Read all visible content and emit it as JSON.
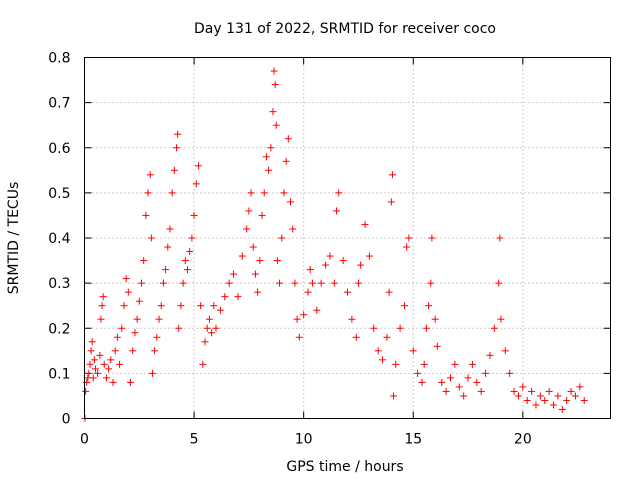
{
  "chart_data": {
    "type": "scatter",
    "title": "Day 131 of 2022, SRMTID for receiver coco",
    "xlabel": "GPS time / hours",
    "ylabel": "SRMTID / TECUs",
    "xlim": [
      0,
      24
    ],
    "ylim": [
      0,
      0.8
    ],
    "xticks": [
      0,
      5,
      10,
      15,
      20
    ],
    "xtick_labels": [
      "0",
      "5",
      "10",
      "15",
      "20"
    ],
    "yticks": [
      0,
      0.1,
      0.2,
      0.3,
      0.4,
      0.5,
      0.6,
      0.7,
      0.8
    ],
    "ytick_labels": [
      "0",
      "0.1",
      "0.2",
      "0.3",
      "0.4",
      "0.5",
      "0.6",
      "0.7",
      "0.8"
    ],
    "grid": true,
    "marker": "+",
    "series": [
      {
        "name": "SRMTID",
        "color": "#ff0000",
        "points": [
          [
            0.02,
            0.0
          ],
          [
            0.05,
            0.06
          ],
          [
            0.1,
            0.08
          ],
          [
            0.15,
            0.09
          ],
          [
            0.2,
            0.1
          ],
          [
            0.25,
            0.12
          ],
          [
            0.3,
            0.15
          ],
          [
            0.35,
            0.17
          ],
          [
            0.4,
            0.09
          ],
          [
            0.45,
            0.13
          ],
          [
            0.5,
            0.11
          ],
          [
            0.6,
            0.1
          ],
          [
            0.7,
            0.14
          ],
          [
            0.75,
            0.22
          ],
          [
            0.8,
            0.25
          ],
          [
            0.85,
            0.27
          ],
          [
            0.9,
            0.12
          ],
          [
            1.0,
            0.09
          ],
          [
            1.1,
            0.11
          ],
          [
            1.2,
            0.13
          ],
          [
            1.3,
            0.08
          ],
          [
            1.4,
            0.15
          ],
          [
            1.5,
            0.18
          ],
          [
            1.6,
            0.12
          ],
          [
            1.7,
            0.2
          ],
          [
            1.8,
            0.25
          ],
          [
            1.9,
            0.31
          ],
          [
            2.0,
            0.28
          ],
          [
            2.1,
            0.08
          ],
          [
            2.2,
            0.15
          ],
          [
            2.3,
            0.19
          ],
          [
            2.4,
            0.22
          ],
          [
            2.5,
            0.26
          ],
          [
            2.6,
            0.3
          ],
          [
            2.7,
            0.35
          ],
          [
            2.8,
            0.45
          ],
          [
            2.9,
            0.5
          ],
          [
            3.0,
            0.54
          ],
          [
            3.05,
            0.4
          ],
          [
            3.1,
            0.1
          ],
          [
            3.2,
            0.15
          ],
          [
            3.3,
            0.18
          ],
          [
            3.4,
            0.22
          ],
          [
            3.5,
            0.25
          ],
          [
            3.6,
            0.3
          ],
          [
            3.7,
            0.33
          ],
          [
            3.8,
            0.38
          ],
          [
            3.9,
            0.42
          ],
          [
            4.0,
            0.5
          ],
          [
            4.1,
            0.55
          ],
          [
            4.2,
            0.6
          ],
          [
            4.25,
            0.63
          ],
          [
            4.3,
            0.2
          ],
          [
            4.4,
            0.25
          ],
          [
            4.5,
            0.3
          ],
          [
            4.6,
            0.35
          ],
          [
            4.7,
            0.33
          ],
          [
            4.8,
            0.37
          ],
          [
            4.9,
            0.4
          ],
          [
            5.0,
            0.45
          ],
          [
            5.1,
            0.52
          ],
          [
            5.2,
            0.56
          ],
          [
            5.3,
            0.25
          ],
          [
            5.4,
            0.12
          ],
          [
            5.5,
            0.17
          ],
          [
            5.6,
            0.2
          ],
          [
            5.7,
            0.22
          ],
          [
            5.8,
            0.19
          ],
          [
            5.9,
            0.25
          ],
          [
            6.0,
            0.2
          ],
          [
            6.2,
            0.24
          ],
          [
            6.4,
            0.27
          ],
          [
            6.6,
            0.3
          ],
          [
            6.8,
            0.32
          ],
          [
            7.0,
            0.27
          ],
          [
            7.2,
            0.36
          ],
          [
            7.4,
            0.42
          ],
          [
            7.5,
            0.46
          ],
          [
            7.6,
            0.5
          ],
          [
            7.7,
            0.38
          ],
          [
            7.8,
            0.32
          ],
          [
            7.9,
            0.28
          ],
          [
            8.0,
            0.35
          ],
          [
            8.1,
            0.45
          ],
          [
            8.2,
            0.5
          ],
          [
            8.3,
            0.58
          ],
          [
            8.4,
            0.55
          ],
          [
            8.5,
            0.6
          ],
          [
            8.6,
            0.68
          ],
          [
            8.65,
            0.77
          ],
          [
            8.7,
            0.74
          ],
          [
            8.75,
            0.65
          ],
          [
            8.8,
            0.35
          ],
          [
            8.9,
            0.3
          ],
          [
            9.0,
            0.4
          ],
          [
            9.1,
            0.5
          ],
          [
            9.2,
            0.57
          ],
          [
            9.3,
            0.62
          ],
          [
            9.4,
            0.48
          ],
          [
            9.5,
            0.42
          ],
          [
            9.6,
            0.3
          ],
          [
            9.7,
            0.22
          ],
          [
            9.8,
            0.18
          ],
          [
            10.0,
            0.23
          ],
          [
            10.2,
            0.28
          ],
          [
            10.3,
            0.33
          ],
          [
            10.4,
            0.3
          ],
          [
            10.6,
            0.24
          ],
          [
            10.8,
            0.3
          ],
          [
            11.0,
            0.34
          ],
          [
            11.2,
            0.36
          ],
          [
            11.4,
            0.3
          ],
          [
            11.5,
            0.46
          ],
          [
            11.6,
            0.5
          ],
          [
            11.8,
            0.35
          ],
          [
            12.0,
            0.28
          ],
          [
            12.2,
            0.22
          ],
          [
            12.4,
            0.18
          ],
          [
            12.5,
            0.3
          ],
          [
            12.6,
            0.34
          ],
          [
            12.8,
            0.43
          ],
          [
            13.0,
            0.36
          ],
          [
            13.2,
            0.2
          ],
          [
            13.4,
            0.15
          ],
          [
            13.6,
            0.13
          ],
          [
            13.8,
            0.18
          ],
          [
            13.9,
            0.28
          ],
          [
            14.0,
            0.48
          ],
          [
            14.05,
            0.54
          ],
          [
            14.1,
            0.05
          ],
          [
            14.2,
            0.12
          ],
          [
            14.4,
            0.2
          ],
          [
            14.6,
            0.25
          ],
          [
            14.7,
            0.38
          ],
          [
            14.8,
            0.4
          ],
          [
            15.0,
            0.15
          ],
          [
            15.2,
            0.1
          ],
          [
            15.4,
            0.08
          ],
          [
            15.5,
            0.12
          ],
          [
            15.6,
            0.2
          ],
          [
            15.7,
            0.25
          ],
          [
            15.8,
            0.3
          ],
          [
            15.85,
            0.4
          ],
          [
            16.0,
            0.22
          ],
          [
            16.1,
            0.16
          ],
          [
            16.3,
            0.08
          ],
          [
            16.5,
            0.06
          ],
          [
            16.7,
            0.09
          ],
          [
            16.9,
            0.12
          ],
          [
            17.1,
            0.07
          ],
          [
            17.3,
            0.05
          ],
          [
            17.5,
            0.09
          ],
          [
            17.7,
            0.12
          ],
          [
            17.9,
            0.08
          ],
          [
            18.1,
            0.06
          ],
          [
            18.3,
            0.1
          ],
          [
            18.5,
            0.14
          ],
          [
            18.7,
            0.2
          ],
          [
            18.9,
            0.3
          ],
          [
            18.95,
            0.4
          ],
          [
            19.0,
            0.22
          ],
          [
            19.2,
            0.15
          ],
          [
            19.4,
            0.1
          ],
          [
            19.6,
            0.06
          ],
          [
            19.8,
            0.05
          ],
          [
            20.0,
            0.07
          ],
          [
            20.2,
            0.04
          ],
          [
            20.4,
            0.06
          ],
          [
            20.6,
            0.03
          ],
          [
            20.8,
            0.05
          ],
          [
            21.0,
            0.04
          ],
          [
            21.2,
            0.06
          ],
          [
            21.4,
            0.03
          ],
          [
            21.6,
            0.05
          ],
          [
            21.8,
            0.02
          ],
          [
            22.0,
            0.04
          ],
          [
            22.2,
            0.06
          ],
          [
            22.4,
            0.05
          ],
          [
            22.6,
            0.07
          ],
          [
            22.8,
            0.04
          ]
        ]
      }
    ]
  }
}
